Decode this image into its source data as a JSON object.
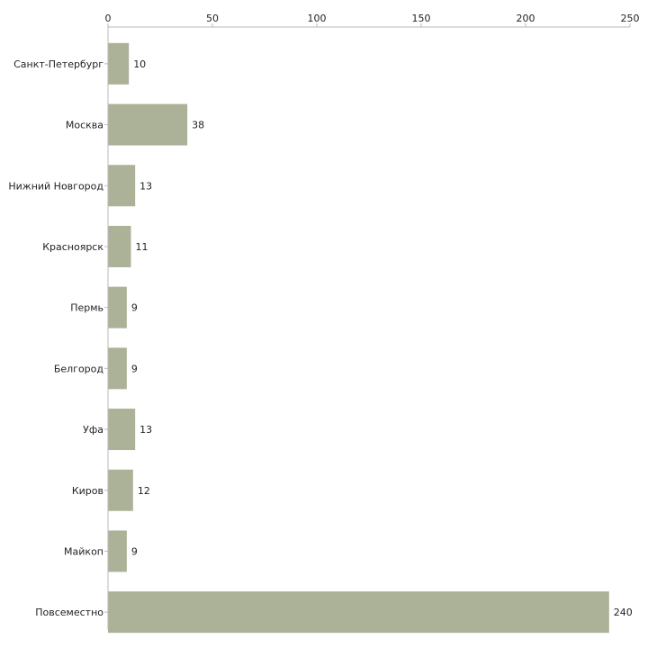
{
  "chart_data": {
    "type": "bar",
    "orientation": "horizontal",
    "title": "",
    "xlabel": "",
    "ylabel": "",
    "xlim": [
      0,
      250
    ],
    "xticks": [
      0,
      50,
      100,
      150,
      200,
      250
    ],
    "grid": false,
    "legend": "none",
    "bar_color": "#acb298",
    "categories": [
      "Санкт-Петербург",
      "Москва",
      "Нижний Новгород",
      "Красноярск",
      "Пермь",
      "Белгород",
      "Уфа",
      "Киров",
      "Майкоп",
      "Повсеместно"
    ],
    "values": [
      10,
      38,
      13,
      11,
      9,
      9,
      13,
      12,
      9,
      240
    ]
  }
}
